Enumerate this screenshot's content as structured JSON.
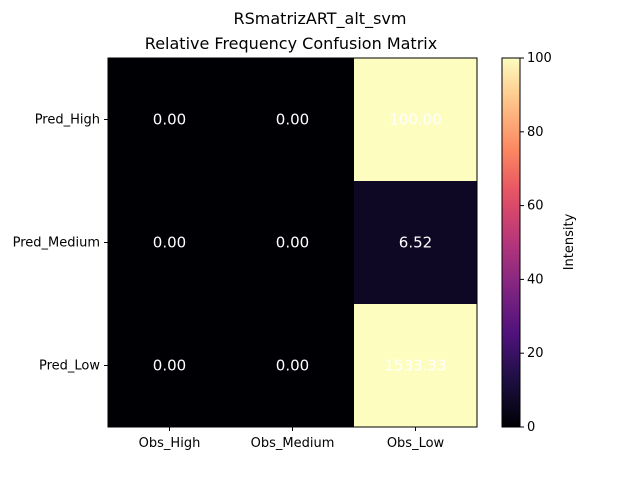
{
  "chart_data": {
    "type": "heatmap",
    "title": "RSmatrizART_alt_svm",
    "subtitle": "Relative Frequency Confusion Matrix",
    "columns": [
      "Obs_High",
      "Obs_Medium",
      "Obs_Low"
    ],
    "rows": [
      "Pred_High",
      "Pred_Medium",
      "Pred_Low"
    ],
    "values": [
      [
        0.0,
        0.0,
        100.0
      ],
      [
        0.0,
        0.0,
        6.52
      ],
      [
        0.0,
        0.0,
        1533.33
      ]
    ],
    "value_labels": [
      [
        "0.00",
        "0.00",
        "100.00"
      ],
      [
        "0.00",
        "0.00",
        "6.52"
      ],
      [
        "0.00",
        "0.00",
        "1533.33"
      ]
    ],
    "colormap": "magma",
    "color_range": [
      0,
      100
    ],
    "colorbar": {
      "label": "Intensity",
      "ticks": [
        0,
        20,
        40,
        60,
        80,
        100
      ],
      "tick_labels": [
        "0",
        "20",
        "40",
        "60",
        "80",
        "100"
      ]
    },
    "cell_text_color": "#ffffff"
  }
}
